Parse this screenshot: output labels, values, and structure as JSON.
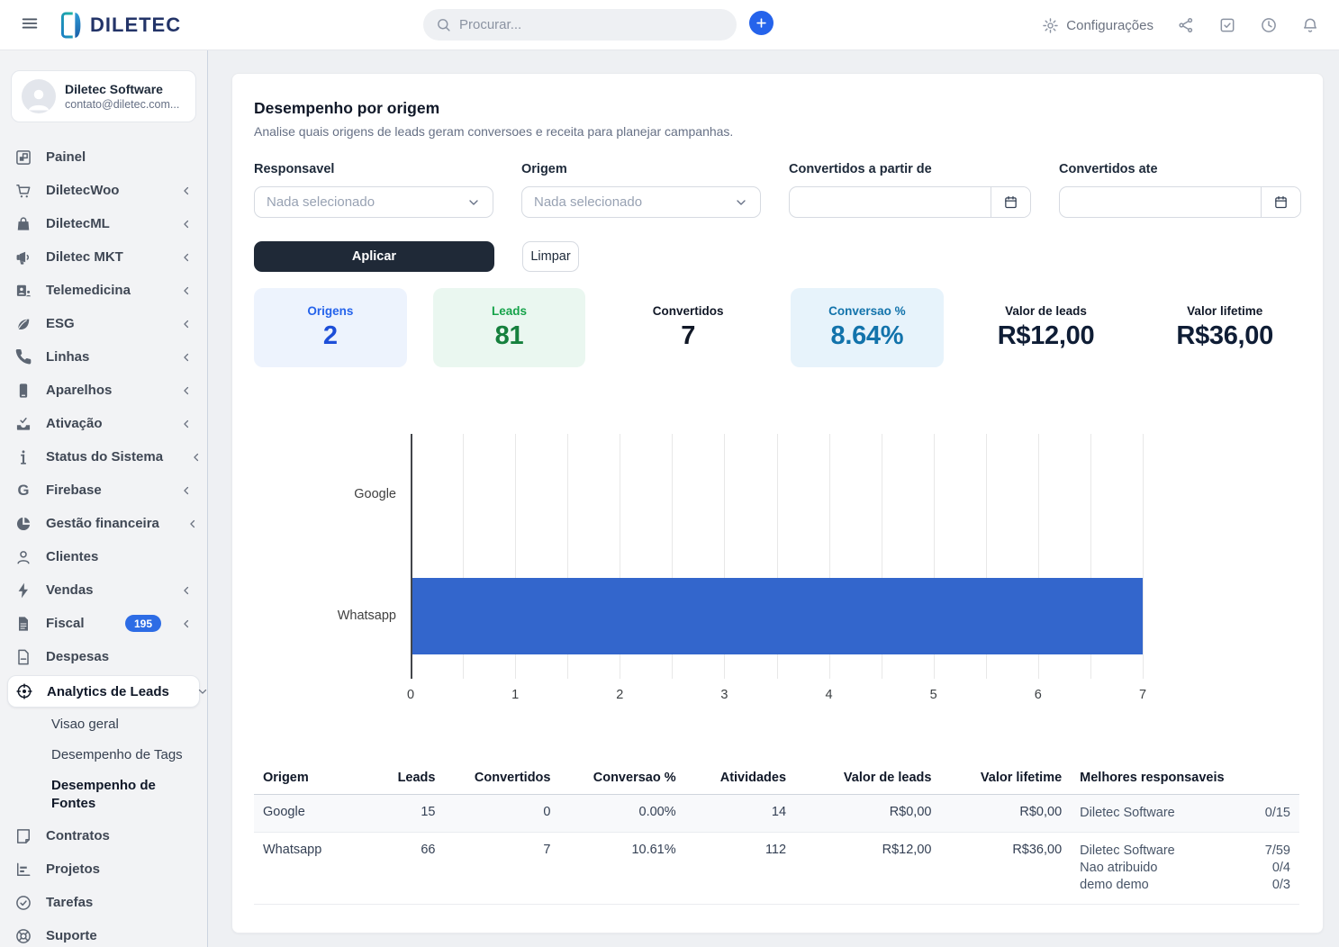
{
  "topbar": {
    "search_placeholder": "Procurar...",
    "settings_label": "Configurações",
    "icons": [
      "share-icon",
      "check-square-icon",
      "clock-icon",
      "bell-icon"
    ]
  },
  "sidebar": {
    "user": {
      "name": "Diletec Software",
      "email": "contato@diletec.com..."
    },
    "items": [
      {
        "label": "Painel",
        "icon": "dashboard-icon"
      },
      {
        "label": "DiletecWoo",
        "icon": "cart-icon",
        "chevron": true
      },
      {
        "label": "DiletecML",
        "icon": "bag-icon",
        "chevron": true
      },
      {
        "label": "Diletec MKT",
        "icon": "megaphone-icon",
        "chevron": true
      },
      {
        "label": "Telemedicina",
        "icon": "doctor-icon",
        "chevron": true
      },
      {
        "label": "ESG",
        "icon": "leaf-icon",
        "chevron": true
      },
      {
        "label": "Linhas",
        "icon": "phone-icon",
        "chevron": true
      },
      {
        "label": "Aparelhos",
        "icon": "mobile-icon",
        "chevron": true
      },
      {
        "label": "Ativação",
        "icon": "inbox-check-icon",
        "chevron": true
      },
      {
        "label": "Status do Sistema",
        "icon": "info-icon",
        "chevron": true
      },
      {
        "label": "Firebase",
        "icon": "g-letter-icon",
        "chevron": true
      },
      {
        "label": "Gestão financeira",
        "icon": "pie-chart-icon",
        "chevron": true
      },
      {
        "label": "Clientes",
        "icon": "user-icon"
      },
      {
        "label": "Vendas",
        "icon": "bolt-icon",
        "chevron": true
      },
      {
        "label": "Fiscal",
        "icon": "file-icon",
        "badge": "195",
        "chevron": true
      },
      {
        "label": "Despesas",
        "icon": "document-icon"
      },
      {
        "label": "Analytics de Leads",
        "icon": "target-icon",
        "active": true,
        "expanded": true
      },
      {
        "label": "Visao geral",
        "sub": true
      },
      {
        "label": "Desempenho de Tags",
        "sub": true
      },
      {
        "label": "Desempenho de Fontes",
        "sub": true,
        "current": true
      },
      {
        "label": "Contratos",
        "icon": "contract-icon"
      },
      {
        "label": "Projetos",
        "icon": "chart-icon"
      },
      {
        "label": "Tarefas",
        "icon": "check-circle-icon"
      },
      {
        "label": "Suporte",
        "icon": "life-ring-icon"
      }
    ]
  },
  "page": {
    "title": "Desempenho por origem",
    "subtitle": "Analise quais origens de leads geram conversoes e receita para planejar campanhas.",
    "filters": [
      {
        "label": "Responsavel",
        "type": "select",
        "value": "Nada selecionado"
      },
      {
        "label": "Origem",
        "type": "select",
        "value": "Nada selecionado"
      },
      {
        "label": "Convertidos a partir de",
        "type": "date",
        "value": ""
      },
      {
        "label": "Convertidos ate",
        "type": "date",
        "value": ""
      }
    ],
    "apply_label": "Aplicar",
    "clear_label": "Limpar",
    "stats": [
      {
        "label": "Origens",
        "value": "2",
        "bg": "#edf3fd",
        "label_color": "#2563eb",
        "value_color": "#1d4ed8"
      },
      {
        "label": "Leads",
        "value": "81",
        "bg": "#eaf7f0",
        "label_color": "#16a34a",
        "value_color": "#15803d"
      },
      {
        "label": "Convertidos",
        "value": "7",
        "bg": "",
        "label_color": "#111827",
        "value_color": "#111827"
      },
      {
        "label": "Conversao %",
        "value": "8.64%",
        "bg": "#e7f3fb",
        "label_color": "#1273ab",
        "value_color": "#1273ab"
      },
      {
        "label": "Valor de leads",
        "value": "R$12,00",
        "bg": "",
        "label_color": "#101828",
        "value_color": "#0f1d35"
      },
      {
        "label": "Valor lifetime",
        "value": "R$36,00",
        "bg": "",
        "label_color": "#101828",
        "value_color": "#0f1d35"
      }
    ]
  },
  "chart_data": {
    "type": "bar",
    "orientation": "horizontal",
    "categories": [
      "Google",
      "Whatsapp"
    ],
    "values": [
      0,
      7
    ],
    "series_label": "Convertidos",
    "xlim": [
      0,
      7
    ],
    "ticks": [
      0,
      1,
      2,
      3,
      4,
      5,
      6,
      7
    ],
    "minor_grid_step": 0.5,
    "grid": true,
    "legend": "none",
    "bar_color": "#3366cc"
  },
  "table": {
    "columns": [
      {
        "label": "Origem",
        "align": "left"
      },
      {
        "label": "Leads",
        "align": "right"
      },
      {
        "label": "Convertidos",
        "align": "right"
      },
      {
        "label": "Conversao %",
        "align": "right"
      },
      {
        "label": "Atividades",
        "align": "right"
      },
      {
        "label": "Valor de leads",
        "align": "right"
      },
      {
        "label": "Valor lifetime",
        "align": "right"
      },
      {
        "label": "Melhores responsaveis",
        "align": "left"
      }
    ],
    "rows": [
      {
        "cells": [
          "Google",
          "15",
          "0",
          "0.00%",
          "14",
          "R$0,00",
          "R$0,00"
        ],
        "responsaveis": [
          {
            "name": "Diletec Software",
            "ratio": "0/15"
          }
        ]
      },
      {
        "cells": [
          "Whatsapp",
          "66",
          "7",
          "10.61%",
          "112",
          "R$12,00",
          "R$36,00"
        ],
        "responsaveis": [
          {
            "name": "Diletec Software",
            "ratio": "7/59"
          },
          {
            "name": "Nao atribuido",
            "ratio": "0/4"
          },
          {
            "name": "demo demo",
            "ratio": "0/3"
          }
        ]
      }
    ]
  }
}
